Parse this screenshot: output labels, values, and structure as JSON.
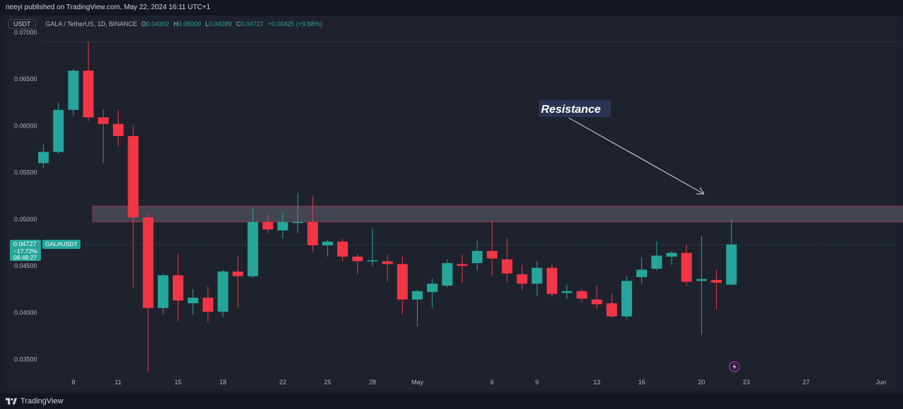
{
  "header": {
    "published_text": "neeyi published on TradingView.com, May 22, 2024 16:11 UTC+1"
  },
  "legend": {
    "currency_badge": "USDT",
    "symbol": "GALA / TetherUS, 1D, BINANCE",
    "o_label": "O",
    "o_value": "0.04302",
    "h_label": "H",
    "h_value": "0.05000",
    "l_label": "L",
    "l_value": "0.04289",
    "c_label": "C",
    "c_value": "0.04727",
    "change": "+0.00425 (+9.88%)"
  },
  "price_badge": {
    "price": "0.04727",
    "change_pct": "−17.72%",
    "countdown": "08:48:27",
    "ticker": "GALAUSDT"
  },
  "annotation": {
    "label": "Resistance"
  },
  "footer": {
    "brand": "TradingView"
  },
  "colors": {
    "bull": "#26a69a",
    "bear": "#f23645",
    "background": "#1e222d",
    "resistance_zone": "#4a4d58",
    "resistance_border": "#a8324a"
  },
  "chart_data": {
    "type": "candlestick",
    "timeframe": "1D",
    "yticks": [
      "0.07000",
      "0.06500",
      "0.06000",
      "0.05500",
      "0.05000",
      "0.04500",
      "0.04000",
      "0.03500"
    ],
    "ylim": [
      0.0318,
      0.0718
    ],
    "xticks": [
      {
        "label": "8",
        "day": 8
      },
      {
        "label": "11",
        "day": 11
      },
      {
        "label": "15",
        "day": 15
      },
      {
        "label": "18",
        "day": 18
      },
      {
        "label": "22",
        "day": 22
      },
      {
        "label": "25",
        "day": 25
      },
      {
        "label": "28",
        "day": 28
      },
      {
        "label": "May",
        "day": 31
      },
      {
        "label": "6",
        "day": 36
      },
      {
        "label": "9",
        "day": 39
      },
      {
        "label": "13",
        "day": 43
      },
      {
        "label": "16",
        "day": 46
      },
      {
        "label": "20",
        "day": 50
      },
      {
        "label": "23",
        "day": 53
      },
      {
        "label": "27",
        "day": 57
      },
      {
        "label": "Jun",
        "day": 62
      }
    ],
    "first_candle_day": 6,
    "candles": [
      {
        "o": 0.056,
        "h": 0.058,
        "l": 0.0555,
        "c": 0.0572
      },
      {
        "o": 0.0572,
        "h": 0.0625,
        "l": 0.057,
        "c": 0.0617
      },
      {
        "o": 0.0617,
        "h": 0.0661,
        "l": 0.0611,
        "c": 0.0659
      },
      {
        "o": 0.0659,
        "h": 0.069,
        "l": 0.0605,
        "c": 0.0609
      },
      {
        "o": 0.0609,
        "h": 0.0617,
        "l": 0.056,
        "c": 0.0602
      },
      {
        "o": 0.0602,
        "h": 0.0617,
        "l": 0.0578,
        "c": 0.0589
      },
      {
        "o": 0.0589,
        "h": 0.0601,
        "l": 0.0427,
        "c": 0.0502
      },
      {
        "o": 0.0502,
        "h": 0.0507,
        "l": 0.0336,
        "c": 0.0405
      },
      {
        "o": 0.0405,
        "h": 0.0442,
        "l": 0.0398,
        "c": 0.044
      },
      {
        "o": 0.044,
        "h": 0.0463,
        "l": 0.0391,
        "c": 0.0413
      },
      {
        "o": 0.041,
        "h": 0.0425,
        "l": 0.0398,
        "c": 0.0416
      },
      {
        "o": 0.0416,
        "h": 0.0428,
        "l": 0.039,
        "c": 0.0401
      },
      {
        "o": 0.0401,
        "h": 0.0446,
        "l": 0.0395,
        "c": 0.0444
      },
      {
        "o": 0.0444,
        "h": 0.046,
        "l": 0.0405,
        "c": 0.0439
      },
      {
        "o": 0.0439,
        "h": 0.0512,
        "l": 0.0437,
        "c": 0.0497
      },
      {
        "o": 0.0497,
        "h": 0.0505,
        "l": 0.0485,
        "c": 0.0489
      },
      {
        "o": 0.0488,
        "h": 0.0508,
        "l": 0.0479,
        "c": 0.0497
      },
      {
        "o": 0.0497,
        "h": 0.0528,
        "l": 0.0485,
        "c": 0.0497
      },
      {
        "o": 0.0497,
        "h": 0.0525,
        "l": 0.0465,
        "c": 0.0472
      },
      {
        "o": 0.0472,
        "h": 0.0478,
        "l": 0.046,
        "c": 0.0476
      },
      {
        "o": 0.0476,
        "h": 0.0479,
        "l": 0.0455,
        "c": 0.046
      },
      {
        "o": 0.046,
        "h": 0.0463,
        "l": 0.0441,
        "c": 0.0455
      },
      {
        "o": 0.0455,
        "h": 0.049,
        "l": 0.045,
        "c": 0.0456
      },
      {
        "o": 0.0455,
        "h": 0.0462,
        "l": 0.0433,
        "c": 0.0452
      },
      {
        "o": 0.0452,
        "h": 0.046,
        "l": 0.0398,
        "c": 0.0414
      },
      {
        "o": 0.0414,
        "h": 0.0425,
        "l": 0.0385,
        "c": 0.0423
      },
      {
        "o": 0.0422,
        "h": 0.0437,
        "l": 0.0405,
        "c": 0.0431
      },
      {
        "o": 0.0429,
        "h": 0.0457,
        "l": 0.0427,
        "c": 0.0453
      },
      {
        "o": 0.0452,
        "h": 0.0462,
        "l": 0.0432,
        "c": 0.045
      },
      {
        "o": 0.0453,
        "h": 0.0477,
        "l": 0.0445,
        "c": 0.0466
      },
      {
        "o": 0.0466,
        "h": 0.0498,
        "l": 0.044,
        "c": 0.0458
      },
      {
        "o": 0.0457,
        "h": 0.048,
        "l": 0.0432,
        "c": 0.0442
      },
      {
        "o": 0.0441,
        "h": 0.0451,
        "l": 0.0424,
        "c": 0.0431
      },
      {
        "o": 0.0431,
        "h": 0.0455,
        "l": 0.0418,
        "c": 0.0448
      },
      {
        "o": 0.0448,
        "h": 0.0452,
        "l": 0.0417,
        "c": 0.042
      },
      {
        "o": 0.0421,
        "h": 0.043,
        "l": 0.0415,
        "c": 0.0423
      },
      {
        "o": 0.0423,
        "h": 0.0425,
        "l": 0.0411,
        "c": 0.0415
      },
      {
        "o": 0.0414,
        "h": 0.0429,
        "l": 0.0404,
        "c": 0.0409
      },
      {
        "o": 0.041,
        "h": 0.042,
        "l": 0.0394,
        "c": 0.0396
      },
      {
        "o": 0.0396,
        "h": 0.0439,
        "l": 0.0393,
        "c": 0.0434
      },
      {
        "o": 0.0438,
        "h": 0.0459,
        "l": 0.0431,
        "c": 0.0446
      },
      {
        "o": 0.0447,
        "h": 0.0476,
        "l": 0.0445,
        "c": 0.0461
      },
      {
        "o": 0.046,
        "h": 0.0466,
        "l": 0.0451,
        "c": 0.0464
      },
      {
        "o": 0.0464,
        "h": 0.0473,
        "l": 0.0428,
        "c": 0.0433
      },
      {
        "o": 0.0434,
        "h": 0.0482,
        "l": 0.0376,
        "c": 0.0436
      },
      {
        "o": 0.0435,
        "h": 0.0446,
        "l": 0.0403,
        "c": 0.0432
      },
      {
        "o": 0.043,
        "h": 0.05,
        "l": 0.0429,
        "c": 0.0473
      }
    ],
    "resistance_zone": {
      "low": 0.0497,
      "high": 0.0514,
      "start_day": 9,
      "end_day": 64
    },
    "last_price": 0.04727,
    "prior_high_line": 0.069
  }
}
